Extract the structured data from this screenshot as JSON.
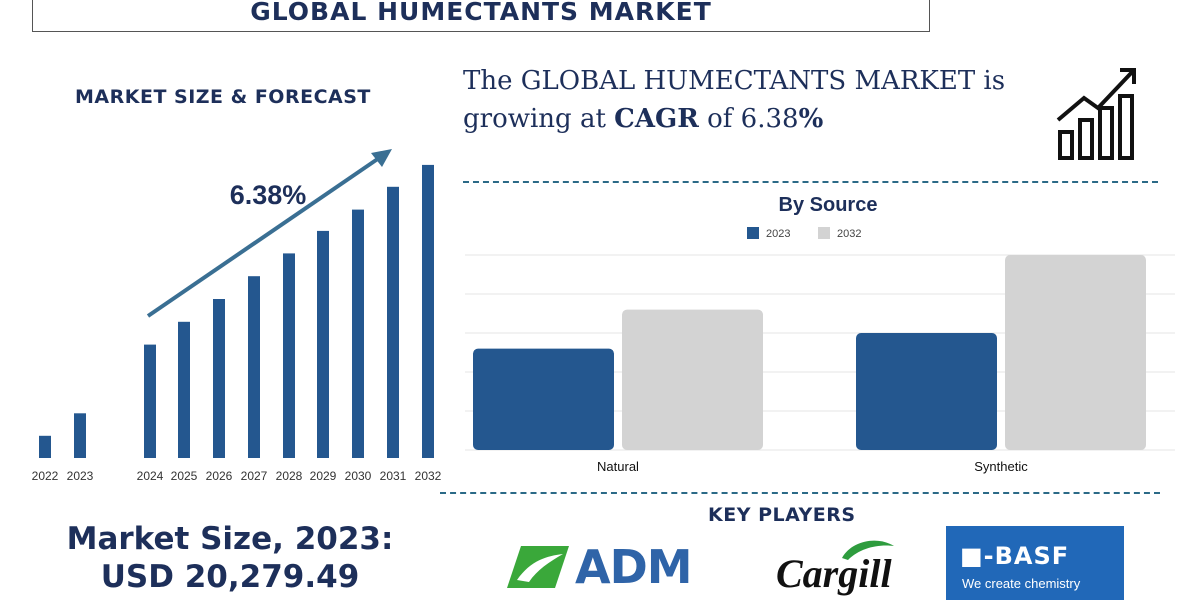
{
  "header": {
    "title": "GLOBAL HUMECTANTS MARKET"
  },
  "left": {
    "section_title": "MARKET SIZE & FORECAST",
    "cagr_label": "6.38%",
    "market_size_line1": "Market Size, 2023:",
    "market_size_line2": "USD 20,279.49"
  },
  "headline": {
    "part1": "The GLOBAL HUMECTANTS MARKET is growing at ",
    "bold": "CAGR",
    "part2": " of 6.38",
    "pct": "%"
  },
  "key_players": {
    "title": "KEY PLAYERS",
    "adm": "ADM",
    "cargill": "Cargill",
    "basf_mark": "BASF",
    "basf_tagline": "We create chemistry"
  },
  "colors": {
    "navy": "#1d2f5a",
    "bar_blue": "#24578f",
    "bar_grey": "#d3d3d3",
    "adm_green": "#3aa83a",
    "basf_blue": "#2168b8"
  },
  "icons": {
    "growth": "growth-chart-icon",
    "arrow": "trend-arrow-icon"
  },
  "chart_data": [
    {
      "type": "bar",
      "title": "MARKET SIZE & FORECAST",
      "categories": [
        "2022",
        "2023",
        "2024",
        "2025",
        "2026",
        "2027",
        "2028",
        "2029",
        "2030",
        "2031",
        "2032"
      ],
      "values": [
        7.4,
        14.9,
        37.8,
        45.4,
        53.0,
        60.6,
        68.2,
        75.7,
        82.8,
        90.4,
        97.7
      ],
      "annotation": "6.38%",
      "ylim": [
        0,
        100
      ],
      "grid": false,
      "legend": "none"
    },
    {
      "type": "bar",
      "title": "By Source",
      "categories": [
        "Natural",
        "Synthetic"
      ],
      "series": [
        {
          "name": "2023",
          "values": [
            2.6,
            3.0
          ]
        },
        {
          "name": "2032",
          "values": [
            3.6,
            5.0
          ]
        }
      ],
      "ylim": [
        0,
        5
      ],
      "grid": true,
      "legend": "top-center"
    }
  ]
}
